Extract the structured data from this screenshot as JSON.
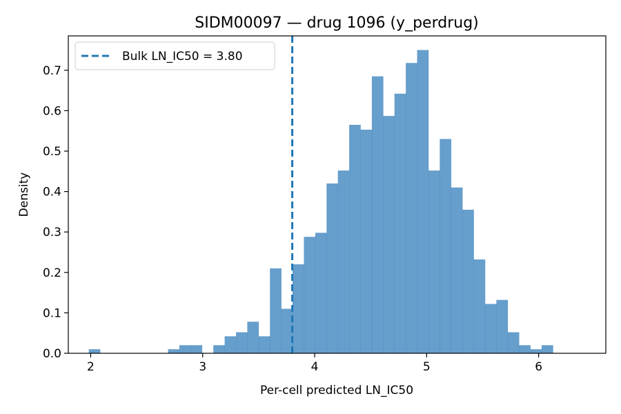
{
  "chart_data": {
    "type": "histogram",
    "title": "SIDM00097 — drug 1096 (y_perdrug)",
    "xlabel": "Per-cell predicted LN_IC50",
    "ylabel": "Density",
    "xlim": [
      1.8,
      6.6
    ],
    "ylim": [
      0,
      0.785
    ],
    "x_ticks": [
      2,
      3,
      4,
      5,
      6
    ],
    "y_ticks": [
      0.0,
      0.1,
      0.2,
      0.3,
      0.4,
      0.5,
      0.6,
      0.7
    ],
    "bin_start": 1.983,
    "bin_width": 0.1011,
    "values": [
      0.01,
      0.0,
      0.0,
      0.0,
      0.0,
      0.0,
      0.0,
      0.01,
      0.02,
      0.02,
      0.0,
      0.02,
      0.042,
      0.052,
      0.078,
      0.042,
      0.21,
      0.11,
      0.22,
      0.288,
      0.298,
      0.42,
      0.452,
      0.565,
      0.553,
      0.685,
      0.587,
      0.642,
      0.718,
      0.75,
      0.452,
      0.53,
      0.41,
      0.355,
      0.232,
      0.122,
      0.132,
      0.052,
      0.02,
      0.01,
      0.02
    ],
    "bar_color": "#3b83be",
    "bar_opacity": 0.78,
    "reference_line": {
      "x": 3.8,
      "label": "Bulk LN_IC50 = 3.80",
      "color": "#1f77b4",
      "style": "dashed"
    },
    "legend": {
      "position": "top-left",
      "entries": [
        "Bulk LN_IC50 = 3.80"
      ]
    },
    "grid": false
  }
}
